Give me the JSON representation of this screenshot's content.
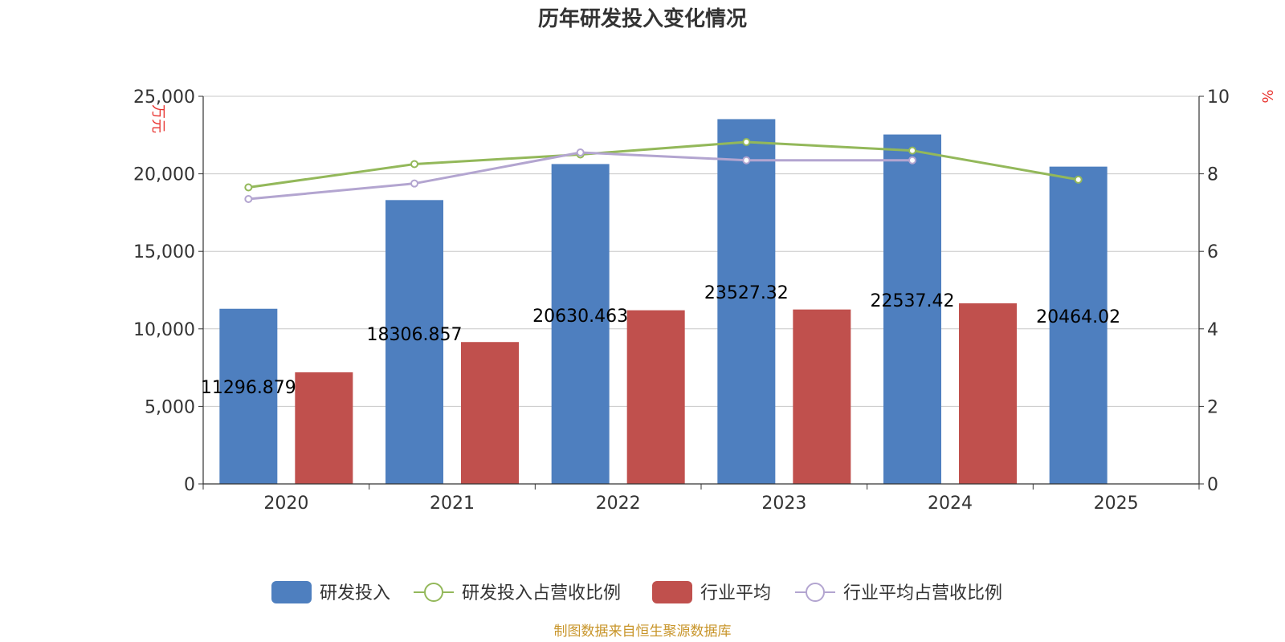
{
  "chart_data": {
    "type": "bar",
    "title": "历年研发投入变化情况",
    "categories": [
      "2020",
      "2021",
      "2022",
      "2023",
      "2024",
      "2025"
    ],
    "y_left": {
      "unit": "万元",
      "range": [
        0,
        25000
      ],
      "ticks": [
        "0",
        "5,000",
        "10,000",
        "15,000",
        "20,000",
        "25,000"
      ],
      "tick_values": [
        0,
        5000,
        10000,
        15000,
        20000,
        25000
      ]
    },
    "y_right": {
      "unit": "%",
      "range": [
        0,
        10
      ],
      "ticks": [
        "0",
        "2",
        "4",
        "6",
        "8",
        "10"
      ],
      "tick_values": [
        0,
        2,
        4,
        6,
        8,
        10
      ]
    },
    "grid": true,
    "legend_position": "bottom",
    "series": [
      {
        "name": "研发投入",
        "type": "bar",
        "axis": "left",
        "color": "#4e7fbf",
        "values": [
          11296.879,
          18306.857,
          20630.463,
          23527.32,
          22537.42,
          20464.02
        ],
        "labels": [
          "11296.879",
          "18306.857",
          "20630.463",
          "23527.32",
          "22537.42",
          "20464.02"
        ]
      },
      {
        "name": "研发投入占营收比例",
        "type": "line",
        "axis": "right",
        "color": "#93b85a",
        "values": [
          7.65,
          8.25,
          8.5,
          8.82,
          8.6,
          7.85
        ]
      },
      {
        "name": "行业平均",
        "type": "bar",
        "axis": "left",
        "color": "#c0504d",
        "values": [
          7200,
          9150,
          11200,
          11250,
          11650,
          null
        ]
      },
      {
        "name": "行业平均占营收比例",
        "type": "line",
        "axis": "right",
        "color": "#b3a5d0",
        "values": [
          7.35,
          7.75,
          8.55,
          8.35,
          8.35,
          null
        ]
      }
    ]
  },
  "source_note": "制图数据来自恒生聚源数据库"
}
